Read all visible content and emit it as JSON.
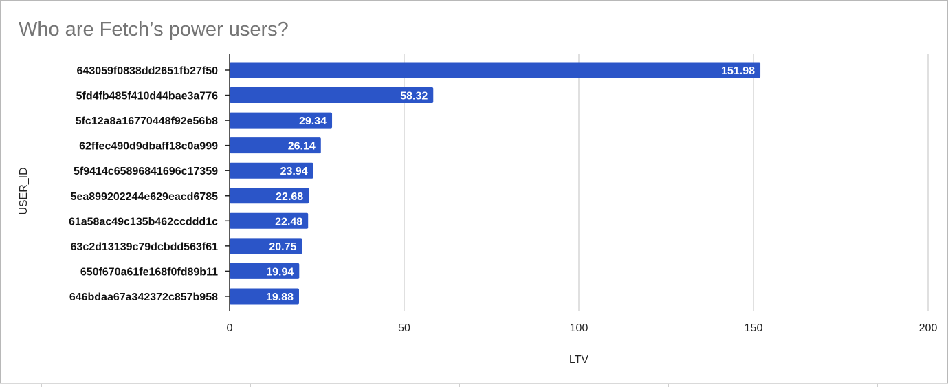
{
  "chart_data": {
    "type": "bar",
    "orientation": "horizontal",
    "title": "Who are Fetch’s power users?",
    "xlabel": "LTV",
    "ylabel": "USER_ID",
    "categories": [
      "643059f0838dd2651fb27f50",
      "5fd4fb485f410d44bae3a776",
      "5fc12a8a16770448f92e56b8",
      "62ffec490d9dbaff18c0a999",
      "5f9414c65896841696c17359",
      "5ea899202244e629eacd6785",
      "61a58ac49c135b462ccddd1c",
      "63c2d13139c79dcbdd563f61",
      "650f670a61fe168f0fd89b11",
      "646bdaa67a342372c857b958"
    ],
    "values": [
      151.98,
      58.32,
      29.34,
      26.14,
      23.94,
      22.68,
      22.48,
      20.75,
      19.94,
      19.88
    ],
    "data_labels": [
      "151.98",
      "58.32",
      "29.34",
      "26.14",
      "23.94",
      "22.68",
      "22.48",
      "20.75",
      "19.94",
      "19.88"
    ],
    "xlim": [
      0,
      200
    ],
    "x_ticks": [
      "0",
      "50",
      "100",
      "150",
      "200"
    ],
    "grid": true,
    "legend": "none",
    "bar_color": "#2b55c8"
  }
}
